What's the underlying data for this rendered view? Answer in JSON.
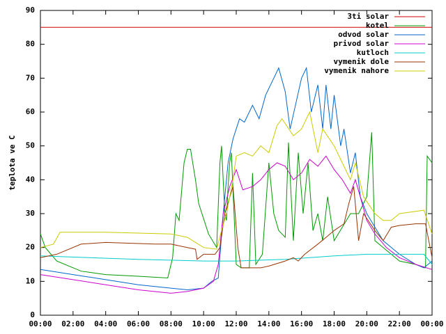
{
  "chart_data": {
    "type": "line",
    "ylabel": "teplota ve C",
    "xlim": [
      0,
      24
    ],
    "ylim": [
      0,
      90
    ],
    "yticks": [
      0,
      10,
      20,
      30,
      40,
      50,
      60,
      70,
      80,
      90
    ],
    "xticks": [
      {
        "value": 0,
        "label": "00:00"
      },
      {
        "value": 2,
        "label": "02:00"
      },
      {
        "value": 4,
        "label": "04:00"
      },
      {
        "value": 6,
        "label": "06:00"
      },
      {
        "value": 8,
        "label": "08:00"
      },
      {
        "value": 10,
        "label": "10:00"
      },
      {
        "value": 12,
        "label": "12:00"
      },
      {
        "value": 14,
        "label": "14:00"
      },
      {
        "value": 16,
        "label": "16:00"
      },
      {
        "value": 18,
        "label": "18:00"
      },
      {
        "value": 20,
        "label": "20:00"
      },
      {
        "value": 22,
        "label": "22:00"
      },
      {
        "value": 24,
        "label": "00:00"
      }
    ],
    "legend": "upper right",
    "series": [
      {
        "name": "3ti solar",
        "color": "#cc0000",
        "x": [
          0,
          24
        ],
        "values": [
          85,
          85
        ]
      },
      {
        "name": "kotel",
        "color": "#009900",
        "x": [
          0,
          0.3,
          1,
          2.5,
          4,
          6,
          7.8,
          8.1,
          8.3,
          8.5,
          8.8,
          9.0,
          9.2,
          9.5,
          9.7,
          10.3,
          10.8,
          11.0,
          11.1,
          11.3,
          11.4,
          11.5,
          11.6,
          11.7,
          12.0,
          12.3,
          12.8,
          13.0,
          13.2,
          13.6,
          14.0,
          14.3,
          14.6,
          15.0,
          15.2,
          15.5,
          15.8,
          16.1,
          16.4,
          16.7,
          17.0,
          17.3,
          17.6,
          18.0,
          18.5,
          19.0,
          19.5,
          20.0,
          20.3,
          20.5,
          21.0,
          21.5,
          22.0,
          23.0,
          23.6,
          23.7,
          24
        ],
        "values": [
          24,
          20,
          16,
          13,
          12,
          11.5,
          11,
          17,
          30,
          28,
          45,
          49,
          49,
          40,
          33,
          24,
          20,
          45,
          50,
          30,
          28,
          38,
          45,
          48,
          15,
          14,
          14,
          42,
          15,
          18,
          45,
          30,
          25,
          23,
          51,
          22,
          48,
          30,
          45,
          25,
          30,
          22,
          35,
          22,
          26,
          30,
          30,
          35,
          54,
          22,
          20,
          18,
          16,
          15,
          14,
          47,
          45
        ]
      },
      {
        "name": "odvod solar",
        "color": "#0066cc",
        "x": [
          0,
          2,
          4,
          6,
          8,
          9,
          10,
          10.5,
          10.9,
          11.2,
          11.5,
          11.8,
          12.2,
          12.5,
          13,
          13.4,
          13.8,
          14.3,
          14.6,
          15,
          15.3,
          16,
          16.3,
          16.6,
          17,
          17.3,
          17.5,
          17.8,
          18,
          18.4,
          18.6,
          19,
          19.3,
          19.6,
          20,
          20.5,
          21,
          22,
          23,
          23.5,
          24
        ],
        "values": [
          13.5,
          12,
          10.5,
          9,
          8,
          7.5,
          8,
          10,
          11,
          30,
          45,
          52,
          58,
          57,
          62,
          58,
          65,
          70,
          73,
          66,
          55,
          70,
          73,
          60,
          68,
          55,
          68,
          55,
          65,
          50,
          55,
          42,
          48,
          35,
          30,
          26,
          22,
          18,
          15,
          14,
          16
        ]
      },
      {
        "name": "privod solar",
        "color": "#cc00cc",
        "x": [
          0,
          2,
          4,
          6,
          8,
          9,
          10,
          10.6,
          10.9,
          11.2,
          11.6,
          12,
          12.4,
          13,
          13.5,
          14,
          14.5,
          15,
          15.5,
          16,
          16.5,
          17,
          17.5,
          18,
          18.5,
          19,
          19.3,
          19.6,
          20,
          20.5,
          21.2,
          22,
          23,
          24
        ],
        "values": [
          12,
          10.5,
          9,
          7.5,
          6.5,
          7,
          8,
          10,
          15,
          30,
          38,
          43,
          37,
          38,
          40,
          43,
          45,
          44,
          40,
          42,
          46,
          44,
          47,
          43,
          40,
          36,
          40,
          35,
          28,
          24,
          20,
          17,
          15,
          13.5
        ]
      },
      {
        "name": "kutloch",
        "color": "#00cccc",
        "x": [
          0,
          6,
          10,
          12,
          15,
          18,
          20,
          23.5,
          24
        ],
        "values": [
          17.5,
          16.5,
          16,
          16,
          16.5,
          17.5,
          18,
          18,
          15
        ]
      },
      {
        "name": "vymenik dole",
        "color": "#993300",
        "x": [
          0,
          1,
          2.5,
          4,
          7,
          8,
          9,
          9.5,
          9.6,
          10,
          10.7,
          11,
          11.3,
          11.8,
          12.1,
          12.3,
          13.5,
          14,
          15,
          15.5,
          15.8,
          16.2,
          17,
          17.5,
          18,
          18.6,
          18.9,
          19.2,
          19.5,
          19.8,
          20.5,
          21,
          21.5,
          22,
          23,
          23.6,
          24
        ],
        "values": [
          17,
          18,
          21,
          21.5,
          21,
          21,
          20,
          19.5,
          16.5,
          18,
          18,
          20,
          30,
          38,
          20,
          14,
          14,
          14.5,
          16,
          17,
          16,
          18,
          21,
          23,
          25,
          27,
          33,
          38,
          22,
          30,
          25,
          22,
          26,
          26.5,
          27,
          27,
          17
        ]
      },
      {
        "name": "vymenik nahore",
        "color": "#cccc00",
        "x": [
          0,
          0.8,
          1.2,
          4,
          8,
          9,
          10,
          10.8,
          11.1,
          11.4,
          11.8,
          12,
          12.5,
          13,
          13.5,
          14,
          14.5,
          14.8,
          15.5,
          16,
          16.5,
          17,
          17.3,
          18,
          18.5,
          19,
          19.3,
          19.8,
          20.5,
          21,
          21.5,
          22,
          23.5,
          24
        ],
        "values": [
          20,
          21,
          24.5,
          24.5,
          24,
          23,
          20,
          19.5,
          25,
          30,
          40,
          47,
          48,
          47,
          50,
          48,
          56,
          58,
          53,
          55,
          60,
          48,
          55,
          50,
          45,
          40,
          45,
          35,
          30,
          28,
          28,
          30,
          31,
          24
        ]
      }
    ]
  }
}
